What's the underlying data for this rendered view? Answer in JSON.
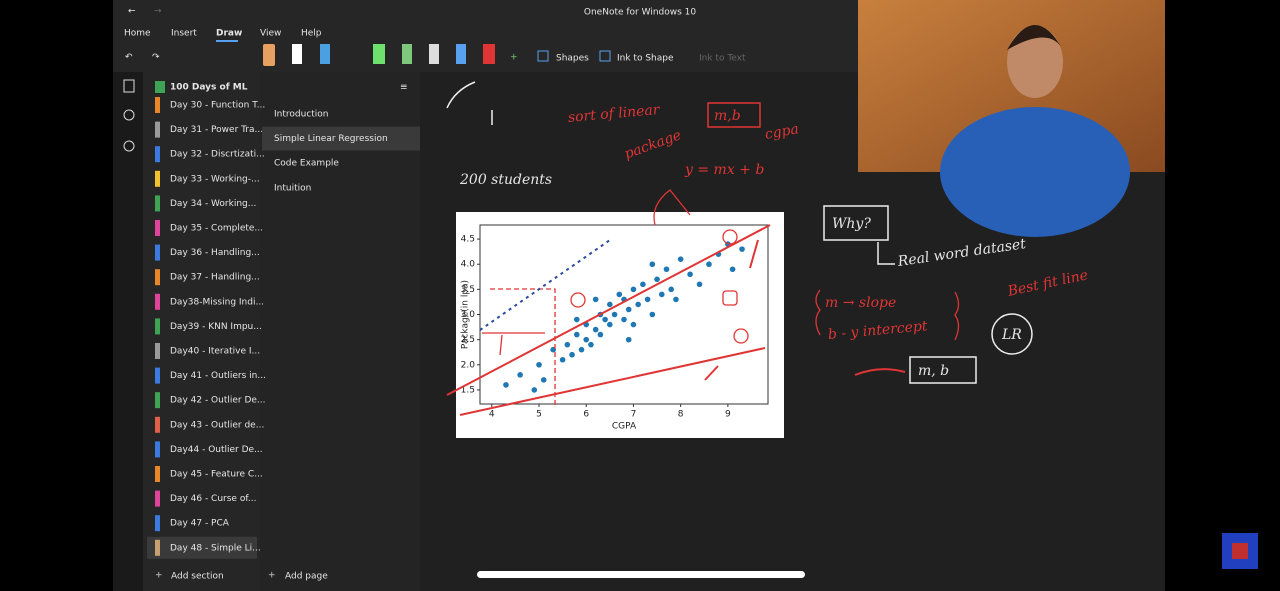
{
  "window": {
    "title": "OneNote for Windows 10"
  },
  "menu": [
    {
      "label": "Home"
    },
    {
      "label": "Insert"
    },
    {
      "label": "Draw",
      "active": true
    },
    {
      "label": "View"
    },
    {
      "label": "Help"
    }
  ],
  "toolbar": {
    "shapes": "Shapes",
    "ink_to_shape": "Ink to Shape",
    "ink_to_text": "Ink to Text"
  },
  "notebook": {
    "name": "100 Days of ML",
    "sections": [
      {
        "label": "Day 30 - Function T...",
        "color": "#e8862a"
      },
      {
        "label": "Day 31 - Power Tra...",
        "color": "#9a9a9a"
      },
      {
        "label": "Day 32 - Discrtizati...",
        "color": "#3b7be0"
      },
      {
        "label": "Day 33 - Working-...",
        "color": "#f2c12e"
      },
      {
        "label": "Day 34 - Working...",
        "color": "#3fa356"
      },
      {
        "label": "Day 35 - Complete...",
        "color": "#e0449a"
      },
      {
        "label": "Day 36 - Handling...",
        "color": "#3b7be0"
      },
      {
        "label": "Day 37 - Handling...",
        "color": "#e8862a"
      },
      {
        "label": "Day38-Missing Indi...",
        "color": "#e0449a"
      },
      {
        "label": "Day39 - KNN Impu...",
        "color": "#3fa356"
      },
      {
        "label": "Day40 - Iterative I...",
        "color": "#9a9a9a"
      },
      {
        "label": "Day 41 - Outliers in...",
        "color": "#3b7be0"
      },
      {
        "label": "Day 42 - Outlier De...",
        "color": "#3fa356"
      },
      {
        "label": "Day 43 - Outlier de...",
        "color": "#e0604a"
      },
      {
        "label": "Day44 - Outlier De...",
        "color": "#3b7be0"
      },
      {
        "label": "Day 45 - Feature C...",
        "color": "#e8862a"
      },
      {
        "label": "Day 46 - Curse of...",
        "color": "#e0449a"
      },
      {
        "label": "Day 47 - PCA",
        "color": "#3b7be0"
      },
      {
        "label": "Day 48 - Simple Li...",
        "color": "#c8a070",
        "selected": true
      }
    ]
  },
  "pages": [
    {
      "label": "Introduction"
    },
    {
      "label": "Simple Linear Regression",
      "selected": true
    },
    {
      "label": "Code Example"
    },
    {
      "label": "Intuition"
    }
  ],
  "footer": {
    "add_section": "Add section",
    "add_page": "Add page"
  },
  "ink": {
    "sort_of_linear": "sort of linear",
    "package": "package",
    "m_b_top": "m,b",
    "cgpa": "cgpa",
    "equation": "y = mx + b",
    "students": "200 students",
    "why": "Why?",
    "real_world": "Real word dataset",
    "best_fit": "Best fit line",
    "m_slope": "m → slope",
    "b_intercept": "b - y intercept",
    "lr": "LR",
    "m_b_box": "m, b"
  },
  "chart_data": {
    "type": "scatter",
    "x_label": "CGPA",
    "y_label": "Package(in lpa)",
    "color": "#1f77b4",
    "xlim": [
      3.75,
      9.85
    ],
    "ylim": [
      1.22,
      4.78
    ],
    "xticks": [
      4,
      5,
      6,
      7,
      8,
      9
    ],
    "yticks": [
      {
        "value": 1.5,
        "label": "1.5"
      },
      {
        "value": 2,
        "label": "2.0"
      },
      2.5,
      {
        "value": 3,
        "label": "3.0"
      },
      3.5,
      {
        "value": 4,
        "label": "4.0"
      },
      4.5
    ],
    "x": [
      4.3,
      4.6,
      4.9,
      5.0,
      5.1,
      5.3,
      5.5,
      5.6,
      5.7,
      5.8,
      5.9,
      6.0,
      6.0,
      6.1,
      6.2,
      6.3,
      6.3,
      6.4,
      6.5,
      6.5,
      6.6,
      6.7,
      6.8,
      6.8,
      6.9,
      7.0,
      7.0,
      7.1,
      7.2,
      7.3,
      7.4,
      7.5,
      7.6,
      7.7,
      7.8,
      7.9,
      8.0,
      8.2,
      8.4,
      8.6,
      8.8,
      9.0,
      9.1,
      9.3,
      6.9,
      7.4,
      6.2,
      5.8
    ],
    "y": [
      1.6,
      1.8,
      1.5,
      2.0,
      1.7,
      2.3,
      2.1,
      2.4,
      2.2,
      2.6,
      2.3,
      2.5,
      2.8,
      2.4,
      2.7,
      3.0,
      2.6,
      2.9,
      2.8,
      3.2,
      3.0,
      3.4,
      2.9,
      3.3,
      3.1,
      3.5,
      2.8,
      3.2,
      3.6,
      3.3,
      3.0,
      3.7,
      3.4,
      3.9,
      3.5,
      3.3,
      4.1,
      3.8,
      3.6,
      4.0,
      4.2,
      4.4,
      3.9,
      4.3,
      2.5,
      4.0,
      3.3,
      2.9
    ]
  }
}
